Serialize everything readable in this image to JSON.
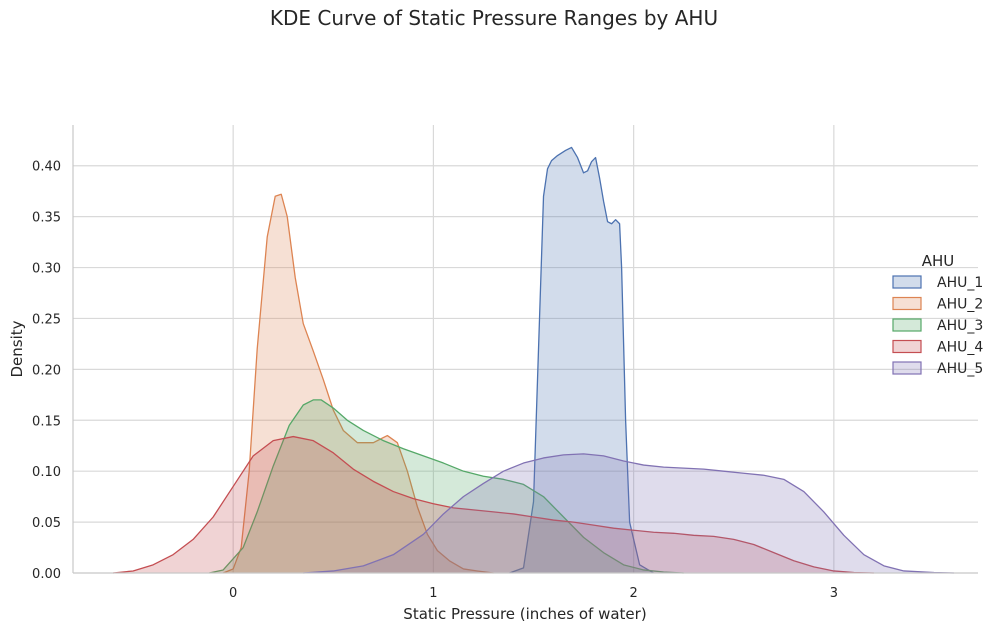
{
  "chart_data": {
    "type": "area",
    "title": "KDE Curve of Static Pressure Ranges by AHU",
    "xlabel": "Static Pressure (inches of water)",
    "ylabel": "Density",
    "xlim": [
      -0.8,
      3.72
    ],
    "ylim": [
      0,
      0.44
    ],
    "xticks": [
      0,
      1,
      2,
      3
    ],
    "xtick_labels": [
      "0",
      "1",
      "2",
      "3"
    ],
    "yticks": [
      0.0,
      0.05,
      0.1,
      0.15,
      0.2,
      0.25,
      0.3,
      0.35,
      0.4
    ],
    "ytick_labels": [
      "0.00",
      "0.05",
      "0.10",
      "0.15",
      "0.20",
      "0.25",
      "0.30",
      "0.35",
      "0.40"
    ],
    "grid": true,
    "legend": {
      "title": "AHU",
      "position": "right"
    },
    "series": [
      {
        "name": "AHU_1",
        "color": "#4c72b0",
        "x": [
          1.38,
          1.45,
          1.5,
          1.53,
          1.55,
          1.57,
          1.59,
          1.62,
          1.66,
          1.69,
          1.72,
          1.75,
          1.77,
          1.79,
          1.81,
          1.83,
          1.85,
          1.87,
          1.89,
          1.91,
          1.93,
          1.94,
          1.96,
          1.98,
          2.03,
          2.1
        ],
        "y": [
          0.0,
          0.005,
          0.07,
          0.25,
          0.37,
          0.397,
          0.405,
          0.41,
          0.415,
          0.418,
          0.408,
          0.393,
          0.395,
          0.404,
          0.408,
          0.388,
          0.365,
          0.345,
          0.343,
          0.347,
          0.343,
          0.3,
          0.15,
          0.05,
          0.008,
          0.0
        ]
      },
      {
        "name": "AHU_2",
        "color": "#dd8452",
        "x": [
          -0.05,
          0.0,
          0.04,
          0.08,
          0.12,
          0.17,
          0.21,
          0.24,
          0.27,
          0.31,
          0.35,
          0.4,
          0.45,
          0.5,
          0.55,
          0.62,
          0.7,
          0.77,
          0.82,
          0.87,
          0.92,
          0.97,
          1.02,
          1.08,
          1.15,
          1.22,
          1.3
        ],
        "y": [
          0.0,
          0.004,
          0.025,
          0.1,
          0.22,
          0.33,
          0.37,
          0.372,
          0.35,
          0.29,
          0.245,
          0.218,
          0.19,
          0.16,
          0.14,
          0.128,
          0.128,
          0.135,
          0.128,
          0.1,
          0.065,
          0.038,
          0.022,
          0.012,
          0.004,
          0.002,
          0.0
        ]
      },
      {
        "name": "AHU_3",
        "color": "#55a868",
        "x": [
          -0.12,
          -0.05,
          0.05,
          0.12,
          0.2,
          0.28,
          0.35,
          0.4,
          0.44,
          0.5,
          0.57,
          0.65,
          0.75,
          0.85,
          0.95,
          1.05,
          1.15,
          1.25,
          1.35,
          1.45,
          1.55,
          1.65,
          1.75,
          1.85,
          1.95,
          2.05,
          2.15,
          2.25
        ],
        "y": [
          0.0,
          0.003,
          0.025,
          0.06,
          0.105,
          0.145,
          0.165,
          0.17,
          0.17,
          0.162,
          0.15,
          0.14,
          0.13,
          0.122,
          0.115,
          0.108,
          0.1,
          0.095,
          0.092,
          0.087,
          0.075,
          0.055,
          0.035,
          0.02,
          0.008,
          0.003,
          0.001,
          0.0
        ]
      },
      {
        "name": "AHU_4",
        "color": "#c44e52",
        "x": [
          -0.6,
          -0.5,
          -0.4,
          -0.3,
          -0.2,
          -0.1,
          0.0,
          0.1,
          0.2,
          0.3,
          0.4,
          0.5,
          0.6,
          0.7,
          0.8,
          0.9,
          1.0,
          1.1,
          1.2,
          1.3,
          1.4,
          1.5,
          1.6,
          1.7,
          1.8,
          1.9,
          2.0,
          2.1,
          2.2,
          2.3,
          2.4,
          2.5,
          2.6,
          2.7,
          2.8,
          2.9,
          3.0,
          3.1,
          3.2
        ],
        "y": [
          0.0,
          0.002,
          0.008,
          0.018,
          0.033,
          0.055,
          0.085,
          0.115,
          0.13,
          0.134,
          0.13,
          0.118,
          0.102,
          0.09,
          0.08,
          0.073,
          0.068,
          0.064,
          0.062,
          0.06,
          0.058,
          0.055,
          0.052,
          0.05,
          0.047,
          0.044,
          0.042,
          0.04,
          0.039,
          0.037,
          0.036,
          0.033,
          0.028,
          0.02,
          0.012,
          0.006,
          0.002,
          0.0005,
          0.0
        ]
      },
      {
        "name": "AHU_5",
        "color": "#8172b3",
        "x": [
          0.35,
          0.5,
          0.65,
          0.8,
          0.95,
          1.05,
          1.15,
          1.25,
          1.35,
          1.45,
          1.55,
          1.65,
          1.75,
          1.85,
          1.95,
          2.05,
          2.15,
          2.25,
          2.35,
          2.45,
          2.55,
          2.65,
          2.75,
          2.85,
          2.95,
          3.05,
          3.15,
          3.25,
          3.35,
          3.5,
          3.6
        ],
        "y": [
          0.0,
          0.002,
          0.007,
          0.018,
          0.038,
          0.058,
          0.075,
          0.088,
          0.1,
          0.108,
          0.113,
          0.116,
          0.117,
          0.115,
          0.11,
          0.106,
          0.104,
          0.103,
          0.102,
          0.1,
          0.098,
          0.096,
          0.092,
          0.08,
          0.06,
          0.037,
          0.018,
          0.007,
          0.002,
          0.0005,
          0.0
        ]
      }
    ]
  }
}
